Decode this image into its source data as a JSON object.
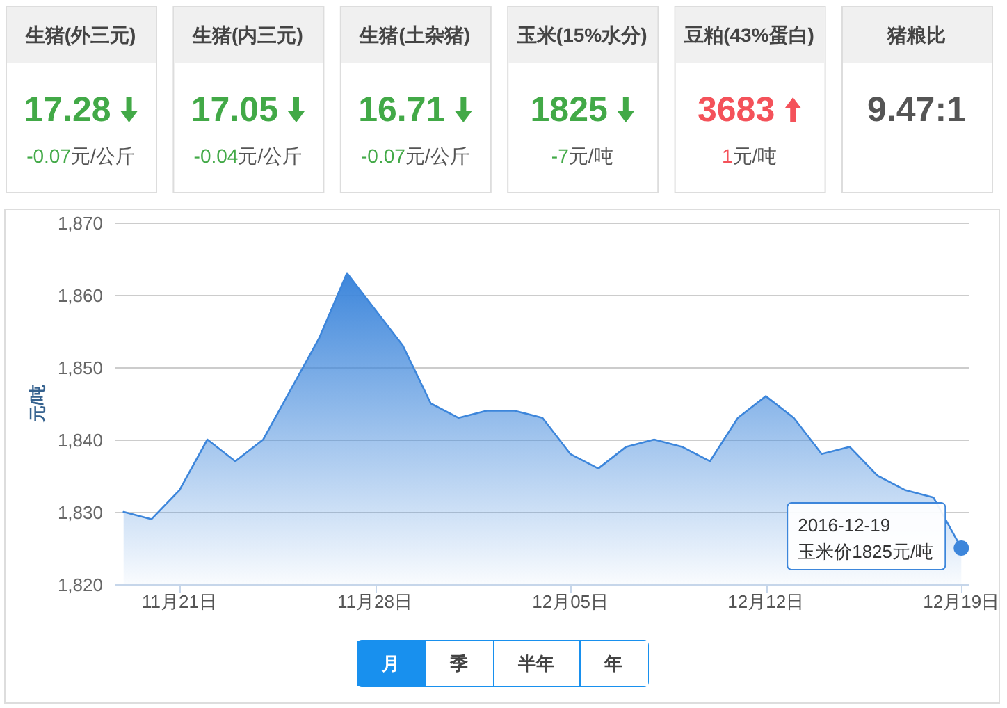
{
  "chart_data": [
    {
      "type": "other",
      "title": "生猪(外三元)",
      "values": [
        17.28,
        -0.07
      ],
      "data_labels": true,
      "colors": [
        "#42a947",
        "#42a947"
      ],
      "annotations": [
        "元/公斤"
      ]
    },
    {
      "type": "other",
      "title": "生猪(内三元)",
      "values": [
        17.05,
        -0.04
      ],
      "data_labels": true,
      "colors": [
        "#42a947",
        "#42a947"
      ],
      "annotations": [
        "元/公斤"
      ]
    },
    {
      "type": "other",
      "title": "生猪(土杂猪)",
      "values": [
        16.71,
        -0.07
      ],
      "data_labels": true,
      "colors": [
        "#42a947",
        "#42a947"
      ],
      "annotations": [
        "元/公斤"
      ]
    },
    {
      "type": "other",
      "title": "玉米(15%水分)",
      "values": [
        1825,
        -7
      ],
      "data_labels": true,
      "colors": [
        "#42a947",
        "#42a947"
      ],
      "annotations": [
        "元/吨"
      ]
    },
    {
      "type": "other",
      "title": "豆粕(43%蛋白)",
      "values": [
        3683,
        1
      ],
      "data_labels": true,
      "colors": [
        "#f4525a",
        "#f4525a"
      ],
      "annotations": [
        "元/吨"
      ]
    },
    {
      "type": "other",
      "title": "猪粮比",
      "annotations": [
        "9.47:1"
      ],
      "colors": [
        "#555555"
      ]
    },
    {
      "type": "area",
      "x": [
        "2016-11-19",
        "2016-11-20",
        "2016-11-21",
        "2016-11-22",
        "2016-11-23",
        "2016-11-24",
        "2016-11-25",
        "2016-11-26",
        "2016-11-27",
        "2016-11-28",
        "2016-11-29",
        "2016-11-30",
        "2016-12-01",
        "2016-12-02",
        "2016-12-03",
        "2016-12-04",
        "2016-12-05",
        "2016-12-06",
        "2016-12-07",
        "2016-12-08",
        "2016-12-09",
        "2016-12-10",
        "2016-12-11",
        "2016-12-12",
        "2016-12-13",
        "2016-12-14",
        "2016-12-15",
        "2016-12-16",
        "2016-12-17",
        "2016-12-18",
        "2016-12-19"
      ],
      "values": [
        1830,
        1829,
        1833,
        1840,
        1837,
        1840,
        1847,
        1854,
        1863,
        1858,
        1853,
        1845,
        1843,
        1844,
        1844,
        1843,
        1838,
        1836,
        1839,
        1840,
        1839,
        1837,
        1843,
        1846,
        1843,
        1838,
        1839,
        1835,
        1833,
        1832,
        1825
      ],
      "color": "#3d86db",
      "xlim": [
        "2016-11-18T17:00",
        "2016-12-19T07:00"
      ],
      "xticks": [
        {
          "value": "2016-11-21",
          "label": "11月21日"
        },
        {
          "value": "2016-11-28",
          "label": "11月28日"
        },
        {
          "value": "2016-12-05",
          "label": "12月05日"
        },
        {
          "value": "2016-12-12",
          "label": "12月12日"
        },
        {
          "value": "2016-12-19",
          "label": "12月19日"
        }
      ],
      "ylim": [
        1820,
        1870
      ],
      "yticks": [
        {
          "value": 1820,
          "label": "1,820"
        },
        {
          "value": 1830,
          "label": "1,830"
        },
        {
          "value": 1840,
          "label": "1,840"
        },
        {
          "value": 1850,
          "label": "1,850"
        },
        {
          "value": 1860,
          "label": "1,860"
        },
        {
          "value": 1870,
          "label": "1,870"
        }
      ],
      "ylabel": "元/吨",
      "grid": "y",
      "annotations": [
        {
          "text": "2016-12-19\n玉米价1825元/吨",
          "x": "2016-12-19",
          "y": 1825
        }
      ]
    },
    {
      "type": "other",
      "annotations": [
        "月",
        "季",
        "半年",
        "年"
      ],
      "colors": [
        "#1890ee",
        "#ffffff",
        "#ffffff",
        "#ffffff"
      ]
    }
  ]
}
